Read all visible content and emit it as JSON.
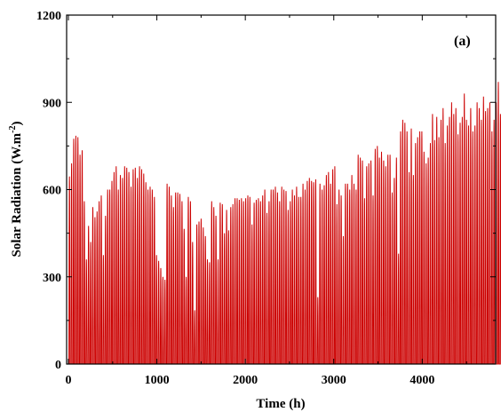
{
  "chart_data": {
    "type": "line",
    "panel_label": "(a)",
    "xlabel": "Time (h)",
    "ylabel": {
      "main": "Solar Radiation (W.m",
      "sup": "-2",
      "close": ")"
    },
    "xlim": [
      -20,
      4830
    ],
    "ylim": [
      0,
      1200
    ],
    "x_ticks": [
      0,
      1000,
      2000,
      3000,
      4000
    ],
    "y_ticks": [
      0,
      300,
      600,
      900,
      1200
    ],
    "x_minor_ticks": [
      500,
      1500,
      2500,
      3500,
      4500
    ],
    "y_minor_ticks": [
      150,
      450,
      750,
      1050
    ],
    "line_color": "#cc0000",
    "period_hours": 24,
    "series": [
      {
        "daily_peaks_w_m2": [
          645,
          690,
          775,
          785,
          780,
          720,
          735,
          560,
          360,
          475,
          420,
          540,
          505,
          525,
          560,
          580,
          375,
          510,
          600,
          600,
          630,
          660,
          680,
          600,
          650,
          640,
          680,
          675,
          660,
          610,
          670,
          675,
          640,
          680,
          670,
          655,
          625,
          600,
          610,
          600,
          575,
          375,
          355,
          330,
          300,
          290,
          620,
          610,
          580,
          540,
          590,
          590,
          585,
          560,
          465,
          300,
          575,
          560,
          420,
          185,
          480,
          490,
          500,
          470,
          440,
          360,
          350,
          560,
          540,
          510,
          360,
          555,
          550,
          450,
          530,
          460,
          540,
          550,
          570,
          570,
          565,
          570,
          560,
          570,
          580,
          575,
          480,
          555,
          565,
          570,
          560,
          580,
          600,
          520,
          560,
          600,
          600,
          610,
          590,
          560,
          610,
          600,
          595,
          530,
          560,
          600,
          580,
          610,
          575,
          575,
          620,
          600,
          630,
          640,
          630,
          625,
          635,
          230,
          620,
          600,
          615,
          650,
          660,
          620,
          670,
          680,
          550,
          600,
          580,
          440,
          620,
          620,
          600,
          650,
          620,
          600,
          720,
          710,
          700,
          570,
          680,
          690,
          700,
          580,
          740,
          750,
          710,
          730,
          700,
          680,
          720,
          720,
          590,
          640,
          710,
          380,
          800,
          840,
          830,
          800,
          660,
          810,
          650,
          760,
          780,
          800,
          800,
          730,
          690,
          710,
          760,
          860,
          770,
          850,
          780,
          840,
          880,
          760,
          820,
          850,
          900,
          860,
          880,
          790,
          830,
          850,
          930,
          840,
          820,
          880,
          800,
          820,
          900,
          880,
          840,
          920,
          870,
          880,
          900,
          800,
          840,
          900,
          970,
          860,
          940,
          920,
          870,
          980,
          950,
          960,
          930,
          900,
          940,
          880,
          960,
          890,
          960,
          800,
          950,
          700,
          940,
          890,
          960,
          830,
          950,
          820,
          830,
          870,
          880,
          840,
          820,
          900,
          1010,
          810,
          820
        ]
      }
    ]
  }
}
